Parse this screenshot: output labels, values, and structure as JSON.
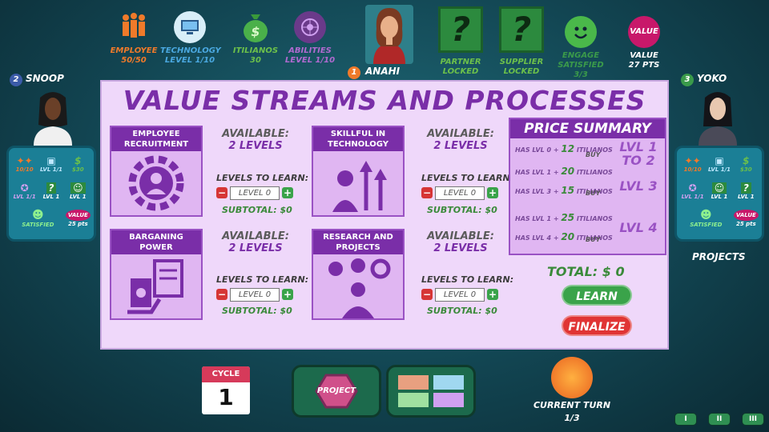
{
  "top": {
    "employee": {
      "label": "EMPLOYEE",
      "value": "50/50"
    },
    "technology": {
      "label": "TECHNOLOGY",
      "value": "LEVEL 1/10"
    },
    "itilianos": {
      "label": "ITILIANOS",
      "value": "30"
    },
    "abilities": {
      "label": "ABILITIES",
      "value": "LEVEL 1/10"
    },
    "player": {
      "number": "1",
      "name": "ANAHI"
    },
    "partner": {
      "label": "PARTNER",
      "status": "LOCKED"
    },
    "supplier": {
      "label": "SUPPLIER",
      "status": "LOCKED"
    },
    "engage": {
      "label": "ENGAGE",
      "status": "SATISFIED",
      "value": "3/3"
    },
    "value": {
      "badge": "VALUE",
      "label": "VALUE",
      "pts": "27 PTS"
    }
  },
  "left_player": {
    "number": "2",
    "name": "SNOOP",
    "stats": [
      "10/10",
      "LVL 1/1",
      "$30",
      "LVL 1/1",
      "LVL 1",
      "LVL 1"
    ],
    "satisfied": "SATISFIED",
    "value_badge": "VALUE",
    "pts": "25 pts"
  },
  "right_player": {
    "number": "3",
    "name": "YOKO",
    "stats": [
      "10/10",
      "LVL 1/1",
      "$30",
      "LVL 1/1",
      "LVL 1",
      "LVL 1"
    ],
    "satisfied": "SATISFIED",
    "value_badge": "VALUE",
    "pts": "25 pts",
    "projects_label": "PROJECTS"
  },
  "panel": {
    "title": "VALUE STREAMS AND PROCESSES",
    "cards": [
      {
        "name": "EMPLOYEE RECRUITMENT",
        "available_label": "AVAILABLE:",
        "available": "2 LEVELS",
        "learn_label": "LEVELS TO LEARN:",
        "level": "LEVEL 0",
        "subtotal_label": "SUBTOTAL:",
        "subtotal": "0"
      },
      {
        "name": "SKILLFUL IN TECHNOLOGY",
        "available_label": "AVAILABLE:",
        "available": "2 LEVELS",
        "learn_label": "LEVELS TO LEARN:",
        "level": "LEVEL 0",
        "subtotal_label": "SUBTOTAL:",
        "subtotal": "0"
      },
      {
        "name": "BARGANING POWER",
        "available_label": "AVAILABLE:",
        "available": "2 LEVELS",
        "learn_label": "LEVELS TO LEARN:",
        "level": "LEVEL 0",
        "subtotal_label": "SUBTOTAL:",
        "subtotal": "0"
      },
      {
        "name": "RESEARCH AND PROJECTS",
        "available_label": "AVAILABLE:",
        "available": "2 LEVELS",
        "learn_label": "LEVELS TO LEARN:",
        "level": "LEVEL 0",
        "subtotal_label": "SUBTOTAL:",
        "subtotal": "0"
      }
    ],
    "price_summary": {
      "title": "PRICE SUMMARY",
      "rows": [
        {
          "has": "HAS LVL 0",
          "count": "12",
          "currency": "ITILIANOS",
          "buy": "BUY",
          "result": "LVL 1 TO 2"
        },
        {
          "has": "HAS LVL 1",
          "count": "20",
          "currency": "ITILIANOS",
          "buy": "",
          "result": ""
        },
        {
          "has": "HAS LVL 3",
          "count": "15",
          "currency": "ITILIANOS",
          "buy": "BUY",
          "result": "LVL 3"
        },
        {
          "has": "HAS LVL 1",
          "count": "25",
          "currency": "ITILIANOS",
          "buy": "",
          "result": ""
        },
        {
          "has": "HAS LVL 4",
          "count": "20",
          "currency": "ITILIANOS",
          "buy": "BUY",
          "result": "LVL 4"
        }
      ]
    },
    "total_label": "TOTAL:",
    "total": "0",
    "learn_button": "LEARN",
    "finalize_button": "FINALIZE"
  },
  "bottom": {
    "cycle_label": "CYCLE",
    "cycle": "1",
    "project_button": "PROJECT",
    "turn_label": "CURRENT TURN",
    "turn": "1/3",
    "speed": [
      "I",
      "II",
      "III"
    ]
  },
  "colors": {
    "accent": "#7a2ea8",
    "green": "#3a8a3a",
    "red": "#e03434",
    "panel": "#efd8fa"
  }
}
